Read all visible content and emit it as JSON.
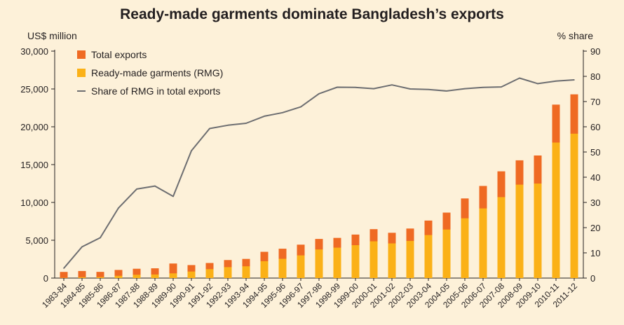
{
  "colors": {
    "background": "#fdf1d9",
    "total_exports": "#ef6a23",
    "rmg": "#fbb117",
    "share_line": "#6d6e71",
    "axis": "#231f20",
    "text": "#231f20"
  },
  "chart_data": {
    "type": "bar",
    "title": "Ready-made garments dominate Bangladesh’s exports",
    "ylabel_left": "US$ million",
    "ylabel_right": "% share",
    "ylim_left": [
      0,
      30000
    ],
    "ylim_right": [
      0,
      90
    ],
    "yticks_left": [
      "0",
      "5,000",
      "10,000",
      "15,000",
      "20,000",
      "25,000",
      "30,000"
    ],
    "yticks_right": [
      "0",
      "10",
      "20",
      "30",
      "40",
      "50",
      "60",
      "70",
      "80",
      "90"
    ],
    "grid": false,
    "legend_position": "top-left",
    "categories": [
      "1983-84",
      "1984-85",
      "1985-86",
      "1986-87",
      "1987-88",
      "1988-89",
      "1989-90",
      "1990-91",
      "1991-92",
      "1992-93",
      "1993-94",
      "1994-95",
      "1995-96",
      "1996-97",
      "1997-98",
      "1998-99",
      "1999-00",
      "2000-01",
      "2001-02",
      "2002-03",
      "2003-04",
      "2004-05",
      "2005-06",
      "2006-07",
      "2007-08",
      "2008-09",
      "2009-10",
      "2010-11",
      "2011-12"
    ],
    "series": [
      {
        "name": "Total exports",
        "kind": "bar",
        "values": [
          811,
          934,
          819,
          1074,
          1231,
          1291,
          1924,
          1718,
          1994,
          2383,
          2534,
          3473,
          3882,
          4418,
          5172,
          5313,
          5752,
          6467,
          5986,
          6548,
          7603,
          8655,
          10526,
          12178,
          14111,
          15565,
          16205,
          22928,
          24288
        ]
      },
      {
        "name": "Ready-made garments (RMG)",
        "kind": "bar",
        "values": [
          32,
          116,
          131,
          299,
          434,
          471,
          624,
          866,
          1182,
          1445,
          1555,
          2228,
          2547,
          3001,
          3782,
          4020,
          4349,
          4860,
          4584,
          4912,
          5686,
          6418,
          7901,
          9211,
          10700,
          12348,
          12497,
          17914,
          19089
        ]
      },
      {
        "name": "Share of RMG in total exports",
        "kind": "line",
        "axis": "right",
        "values": [
          3.9,
          12.4,
          16.0,
          27.8,
          35.3,
          36.5,
          32.4,
          50.5,
          59.3,
          60.6,
          61.4,
          64.2,
          65.6,
          67.9,
          73.1,
          75.7,
          75.6,
          75.1,
          76.6,
          75.0,
          74.8,
          74.2,
          75.1,
          75.6,
          75.8,
          79.3,
          77.1,
          78.1,
          78.6
        ]
      }
    ]
  }
}
